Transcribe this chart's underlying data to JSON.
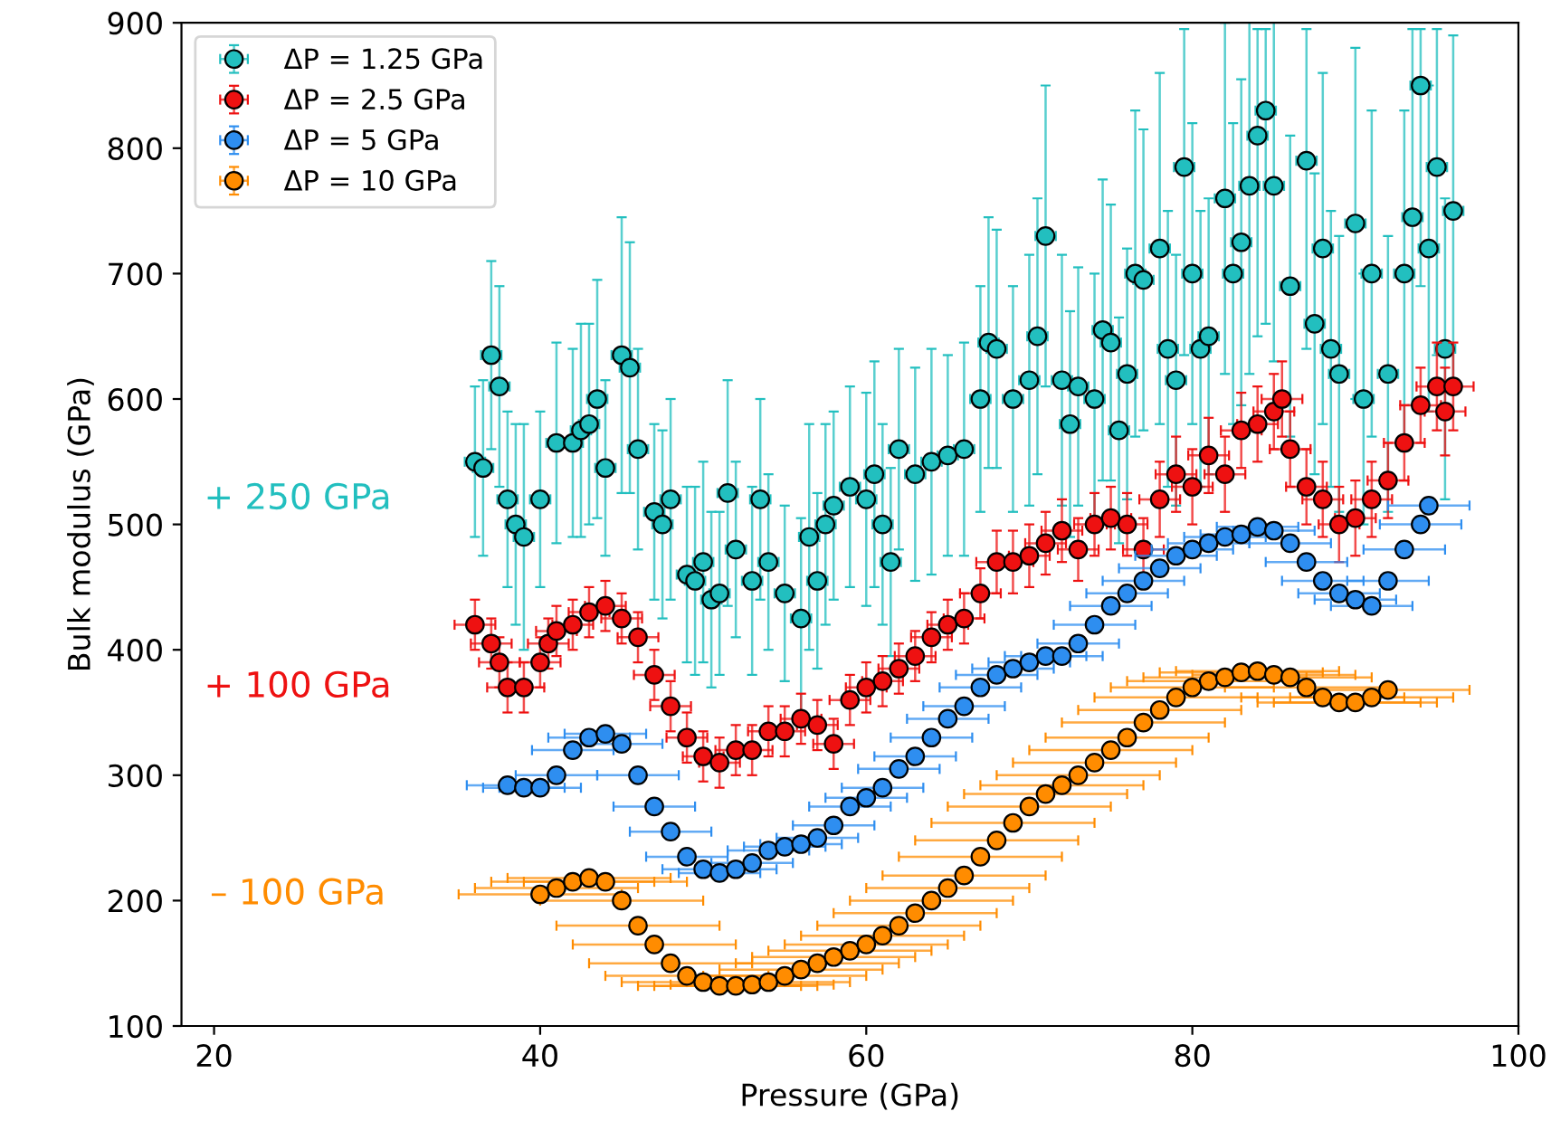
{
  "chart_data": {
    "type": "scatter",
    "xlabel": "Pressure (GPa)",
    "ylabel": "Bulk modulus (GPa)",
    "xlim": [
      18,
      100
    ],
    "ylim": [
      100,
      900
    ],
    "xticks": [
      20,
      40,
      60,
      80,
      100
    ],
    "yticks": [
      100,
      200,
      300,
      400,
      500,
      600,
      700,
      800,
      900
    ],
    "grid": false,
    "legend": "top left",
    "marker": "circle",
    "annotations": [
      "+ 250 GPa",
      "+ 100 GPa",
      "– 100 GPa"
    ],
    "series": [
      {
        "name": "ΔP = 1.25 GPa",
        "color": "#22bfbf",
        "x": [
          36,
          36.5,
          37,
          37.5,
          38,
          38.5,
          39,
          40,
          41,
          42,
          42.5,
          43,
          43.5,
          44,
          45,
          45.5,
          46,
          47,
          47.5,
          48,
          49,
          49.5,
          50,
          50.5,
          51,
          51.5,
          52,
          53,
          53.5,
          54,
          55,
          56,
          56.5,
          57,
          57.5,
          58,
          59,
          60,
          60.5,
          61,
          61.5,
          62,
          63,
          64,
          65,
          66,
          67,
          67.5,
          68,
          69,
          70,
          70.5,
          71,
          72,
          72.5,
          73,
          74,
          74.5,
          75,
          75.5,
          76,
          76.5,
          77,
          78,
          78.5,
          79,
          79.5,
          80,
          80.5,
          81,
          82,
          82.5,
          83,
          83.5,
          84,
          84.5,
          85,
          86,
          87,
          87.5,
          88,
          88.5,
          89,
          90,
          90.5,
          91,
          92,
          93,
          93.5,
          94,
          94.5,
          95,
          95.5,
          96
        ],
        "values": [
          550,
          545,
          635,
          610,
          520,
          500,
          490,
          520,
          565,
          565,
          575,
          580,
          600,
          545,
          635,
          625,
          560,
          510,
          500,
          520,
          460,
          455,
          470,
          440,
          445,
          525,
          480,
          455,
          520,
          470,
          445,
          425,
          490,
          455,
          500,
          515,
          530,
          520,
          540,
          500,
          470,
          560,
          540,
          550,
          555,
          560,
          600,
          645,
          640,
          600,
          615,
          650,
          730,
          615,
          580,
          610,
          600,
          655,
          645,
          575,
          620,
          700,
          695,
          720,
          640,
          615,
          785,
          700,
          640,
          650,
          760,
          700,
          725,
          770,
          810,
          830,
          770,
          690,
          790,
          660,
          720,
          640,
          620,
          740,
          600,
          700,
          620,
          700,
          745,
          850,
          720,
          785,
          640,
          750
        ],
        "errors": [
          60,
          70,
          75,
          80,
          70,
          80,
          90,
          70,
          80,
          75,
          85,
          80,
          95,
          70,
          110,
          100,
          80,
          70,
          75,
          80,
          70,
          75,
          80,
          70,
          65,
          90,
          70,
          75,
          80,
          70,
          70,
          80,
          90,
          70,
          80,
          75,
          80,
          85,
          90,
          80,
          75,
          80,
          85,
          90,
          80,
          85,
          90,
          100,
          95,
          90,
          100,
          110,
          120,
          100,
          90,
          95,
          100,
          120,
          110,
          90,
          100,
          130,
          120,
          140,
          110,
          100,
          [
            635,
            895
          ],
          120,
          110,
          110,
          140,
          120,
          130,
          150,
          [
            650,
            895
          ],
          [
            660,
            895
          ],
          140,
          120,
          [
            640,
            895
          ],
          120,
          140,
          110,
          110,
          140,
          100,
          130,
          110,
          130,
          150,
          [
            690,
            895
          ],
          130,
          [
            635,
            895
          ],
          120,
          140
        ],
        "xerrors": [
          0.625,
          0.625,
          0.625,
          0.625,
          0.625,
          0.625,
          0.625,
          0.625,
          0.625,
          0.625,
          0.625,
          0.625,
          0.625,
          0.625,
          0.625,
          0.625,
          0.625,
          0.625,
          0.625,
          0.625,
          0.625,
          0.625,
          0.625,
          0.625,
          0.625,
          0.625,
          0.625,
          0.625,
          0.625,
          0.625,
          0.625,
          0.625,
          0.625,
          0.625,
          0.625,
          0.625,
          0.625,
          0.625,
          0.625,
          0.625,
          0.625,
          0.625,
          0.625,
          0.625,
          0.625,
          0.625,
          0.625,
          0.625,
          0.625,
          0.625,
          0.625,
          0.625,
          0.625,
          0.625,
          0.625,
          0.625,
          0.625,
          0.625,
          0.625,
          0.625,
          0.625,
          0.625,
          0.625,
          0.625,
          0.625,
          0.625,
          0.625,
          0.625,
          0.625,
          0.625,
          0.625,
          0.625,
          0.625,
          0.625,
          0.625,
          0.625,
          0.625,
          0.625,
          0.625,
          0.625,
          0.625,
          0.625,
          0.625,
          0.625,
          0.625,
          0.625,
          0.625,
          0.625,
          0.625,
          0.625,
          0.625,
          0.625,
          0.625,
          0.625
        ]
      },
      {
        "name": "ΔP = 2.5 GPa",
        "color": "#ee1111",
        "x": [
          36,
          37,
          37.5,
          38,
          39,
          40,
          40.5,
          41,
          42,
          43,
          44,
          45,
          46,
          47,
          48,
          49,
          50,
          51,
          52,
          53,
          54,
          55,
          56,
          57,
          58,
          59,
          60,
          61,
          62,
          63,
          64,
          65,
          66,
          67,
          68,
          69,
          70,
          71,
          72,
          73,
          74,
          75,
          76,
          77,
          78,
          79,
          80,
          81,
          82,
          83,
          84,
          85,
          85.5,
          86,
          87,
          88,
          89,
          90,
          91,
          92,
          93,
          94,
          95,
          95.5,
          96
        ],
        "values": [
          420,
          405,
          390,
          370,
          370,
          390,
          405,
          415,
          420,
          430,
          435,
          425,
          410,
          380,
          355,
          330,
          315,
          310,
          320,
          320,
          335,
          335,
          345,
          340,
          325,
          360,
          370,
          375,
          385,
          395,
          410,
          420,
          425,
          445,
          470,
          470,
          475,
          485,
          495,
          480,
          500,
          505,
          500,
          480,
          520,
          540,
          530,
          555,
          540,
          575,
          580,
          590,
          600,
          560,
          530,
          520,
          500,
          505,
          520,
          535,
          565,
          595,
          610,
          590,
          610
        ],
        "errors": [
          20,
          20,
          20,
          20,
          20,
          20,
          20,
          20,
          20,
          20,
          20,
          20,
          20,
          20,
          20,
          20,
          20,
          20,
          20,
          20,
          20,
          20,
          20,
          20,
          20,
          20,
          20,
          20,
          20,
          20,
          20,
          20,
          20,
          20,
          25,
          25,
          25,
          25,
          25,
          25,
          25,
          25,
          25,
          25,
          30,
          30,
          30,
          30,
          30,
          30,
          30,
          30,
          30,
          30,
          30,
          30,
          30,
          30,
          30,
          30,
          30,
          30,
          35,
          35,
          35
        ],
        "xerrors": [
          1.25,
          1.25,
          1.25,
          1.25,
          1.25,
          1.25,
          1.25,
          1.25,
          1.25,
          1.25,
          1.25,
          1.25,
          1.25,
          1.25,
          1.25,
          1.25,
          1.25,
          1.25,
          1.25,
          1.25,
          1.25,
          1.25,
          1.25,
          1.25,
          1.25,
          1.25,
          1.25,
          1.25,
          1.25,
          1.25,
          1.25,
          1.25,
          1.25,
          1.25,
          1.25,
          1.25,
          1.25,
          1.25,
          1.25,
          1.25,
          1.25,
          1.25,
          1.25,
          1.25,
          1.25,
          1.25,
          1.25,
          1.25,
          1.25,
          1.25,
          1.25,
          1.25,
          1.25,
          1.25,
          1.25,
          1.25,
          1.25,
          1.25,
          1.25,
          1.25,
          1.25,
          1.25,
          1.25,
          1.25,
          1.25
        ]
      },
      {
        "name": "ΔP = 5 GPa",
        "color": "#2e8ef0",
        "x": [
          38,
          39,
          40,
          41,
          42,
          43,
          44,
          45,
          46,
          47,
          48,
          49,
          50,
          51,
          52,
          53,
          54,
          55,
          56,
          57,
          58,
          59,
          60,
          61,
          62,
          63,
          64,
          65,
          66,
          67,
          68,
          69,
          70,
          71,
          72,
          73,
          74,
          75,
          76,
          77,
          78,
          79,
          80,
          81,
          82,
          83,
          84,
          85,
          86,
          87,
          88,
          89,
          90,
          91,
          92,
          93,
          94,
          94.5
        ],
        "values": [
          292,
          290,
          290,
          300,
          320,
          330,
          333,
          325,
          300,
          275,
          255,
          235,
          225,
          222,
          225,
          230,
          240,
          243,
          245,
          250,
          260,
          275,
          282,
          290,
          305,
          315,
          330,
          345,
          355,
          370,
          380,
          385,
          390,
          395,
          395,
          405,
          420,
          435,
          445,
          455,
          465,
          475,
          480,
          485,
          490,
          492,
          498,
          495,
          485,
          470,
          455,
          445,
          440,
          435,
          455,
          480,
          500,
          515
        ],
        "errors": [
          6,
          6,
          6,
          6,
          6,
          6,
          6,
          6,
          6,
          6,
          6,
          6,
          6,
          6,
          6,
          6,
          6,
          6,
          6,
          6,
          6,
          6,
          6,
          6,
          6,
          6,
          6,
          6,
          6,
          6,
          6,
          6,
          6,
          6,
          6,
          6,
          6,
          6,
          6,
          6,
          6,
          6,
          6,
          6,
          6,
          6,
          6,
          6,
          6,
          6,
          6,
          6,
          6,
          6,
          6,
          6,
          6,
          6
        ],
        "xerrors": [
          2.5,
          2.5,
          2.5,
          2.5,
          2.5,
          2.5,
          2.5,
          2.5,
          2.5,
          2.5,
          2.5,
          2.5,
          2.5,
          2.5,
          2.5,
          2.5,
          2.5,
          2.5,
          2.5,
          2.5,
          2.5,
          2.5,
          2.5,
          2.5,
          2.5,
          2.5,
          2.5,
          2.5,
          2.5,
          2.5,
          2.5,
          2.5,
          2.5,
          2.5,
          2.5,
          2.5,
          2.5,
          2.5,
          2.5,
          2.5,
          2.5,
          2.5,
          2.5,
          2.5,
          2.5,
          2.5,
          2.5,
          2.5,
          2.5,
          2.5,
          2.5,
          2.5,
          2.5,
          2.5,
          2.5,
          2.5,
          2.5,
          2.5
        ]
      },
      {
        "name": "ΔP = 10 GPa",
        "color": "#ff8c00",
        "x": [
          40,
          41,
          42,
          43,
          44,
          45,
          46,
          47,
          48,
          49,
          50,
          51,
          52,
          53,
          54,
          55,
          56,
          57,
          58,
          59,
          60,
          61,
          62,
          63,
          64,
          65,
          66,
          67,
          68,
          69,
          70,
          71,
          72,
          73,
          74,
          75,
          76,
          77,
          78,
          79,
          80,
          81,
          82,
          83,
          84,
          85,
          86,
          87,
          88,
          89,
          90,
          91,
          92
        ],
        "values": [
          205,
          210,
          215,
          218,
          215,
          200,
          180,
          165,
          150,
          140,
          135,
          132,
          132,
          133,
          135,
          140,
          145,
          150,
          155,
          160,
          165,
          172,
          180,
          190,
          200,
          210,
          220,
          235,
          248,
          262,
          275,
          285,
          292,
          300,
          310,
          320,
          330,
          342,
          352,
          362,
          370,
          375,
          378,
          382,
          383,
          380,
          378,
          370,
          362,
          358,
          358,
          362,
          368
        ],
        "errors": [
          4,
          4,
          4,
          4,
          4,
          4,
          4,
          4,
          4,
          4,
          4,
          4,
          4,
          4,
          4,
          4,
          4,
          4,
          4,
          4,
          4,
          4,
          4,
          4,
          4,
          4,
          4,
          4,
          4,
          4,
          4,
          4,
          4,
          4,
          4,
          4,
          4,
          4,
          4,
          4,
          4,
          4,
          4,
          4,
          4,
          4,
          4,
          4,
          4,
          4,
          4,
          4,
          4
        ],
        "xerrors": [
          5,
          5,
          5,
          5,
          5,
          5,
          5,
          5,
          5,
          5,
          5,
          5,
          5,
          5,
          5,
          5,
          5,
          5,
          5,
          5,
          5,
          5,
          5,
          5,
          5,
          5,
          5,
          5,
          5,
          5,
          5,
          5,
          5,
          5,
          5,
          5,
          5,
          5,
          5,
          5,
          5,
          5,
          5,
          5,
          5,
          5,
          5,
          5,
          5,
          5,
          5,
          5,
          5
        ]
      }
    ]
  }
}
